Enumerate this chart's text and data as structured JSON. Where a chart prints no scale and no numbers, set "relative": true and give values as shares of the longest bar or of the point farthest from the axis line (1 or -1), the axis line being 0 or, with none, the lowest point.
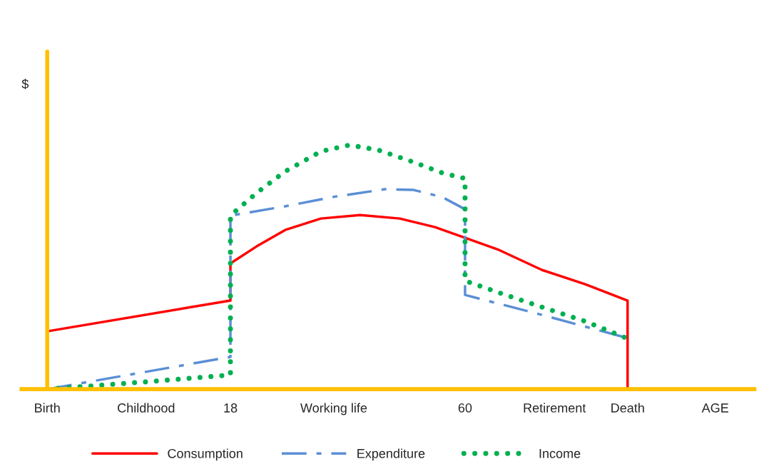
{
  "chart_data": {
    "type": "line",
    "relative": true,
    "ylabel": "$",
    "xlim": [
      -19.4,
      111.8
    ],
    "xticks": [
      {
        "value": -14.8,
        "label": "Birth"
      },
      {
        "value": 2.9,
        "label": "Childhood"
      },
      18,
      {
        "value": 36.5,
        "label": "Working life"
      },
      60,
      {
        "value": 76.0,
        "label": "Retirement"
      },
      {
        "value": 89.1,
        "label": "Death"
      },
      {
        "value": 104.8,
        "label": "AGE"
      }
    ],
    "ref_lines": [
      {
        "axis": "x",
        "value": -14.8,
        "color": "#ffc000"
      }
    ],
    "tick_labels": "x",
    "grid": false,
    "legend": "bottom",
    "marker": "none",
    "series": [
      {
        "name": "Consumption",
        "color": "#ff0000",
        "line_style": "solid",
        "x": [
          -14.8,
          18,
          18,
          22.7,
          27.8,
          34.2,
          41.2,
          48.3,
          54.6,
          60,
          66.1,
          73.8,
          81.5,
          89.1,
          89.1
        ],
        "values": [
          0.237,
          0.363,
          0.515,
          0.585,
          0.652,
          0.699,
          0.713,
          0.699,
          0.664,
          0.62,
          0.57,
          0.488,
          0.43,
          0.363,
          0
        ]
      },
      {
        "name": "Expenditure",
        "color": "#5b8fd6",
        "line_style": "dashdot",
        "x": [
          -14.8,
          18,
          18,
          27.8,
          36.8,
          45.7,
          50.8,
          55.9,
          60,
          60,
          73.8,
          88.5
        ],
        "values": [
          0,
          0.132,
          0.711,
          0.749,
          0.789,
          0.819,
          0.816,
          0.787,
          0.737,
          0.386,
          0.304,
          0.213
        ]
      },
      {
        "name": "Income",
        "color": "#00b050",
        "line_style": "dotted",
        "x": [
          -14.8,
          2.3,
          18,
          18,
          22.7,
          27.8,
          34.2,
          39.3,
          44.4,
          50.8,
          55.9,
          60,
          60,
          66.1,
          73.8,
          81.5,
          88.5
        ],
        "values": [
          0,
          0.029,
          0.058,
          0.711,
          0.804,
          0.892,
          0.974,
          1.0,
          0.98,
          0.93,
          0.886,
          0.863,
          0.444,
          0.395,
          0.336,
          0.278,
          0.213
        ]
      }
    ]
  }
}
